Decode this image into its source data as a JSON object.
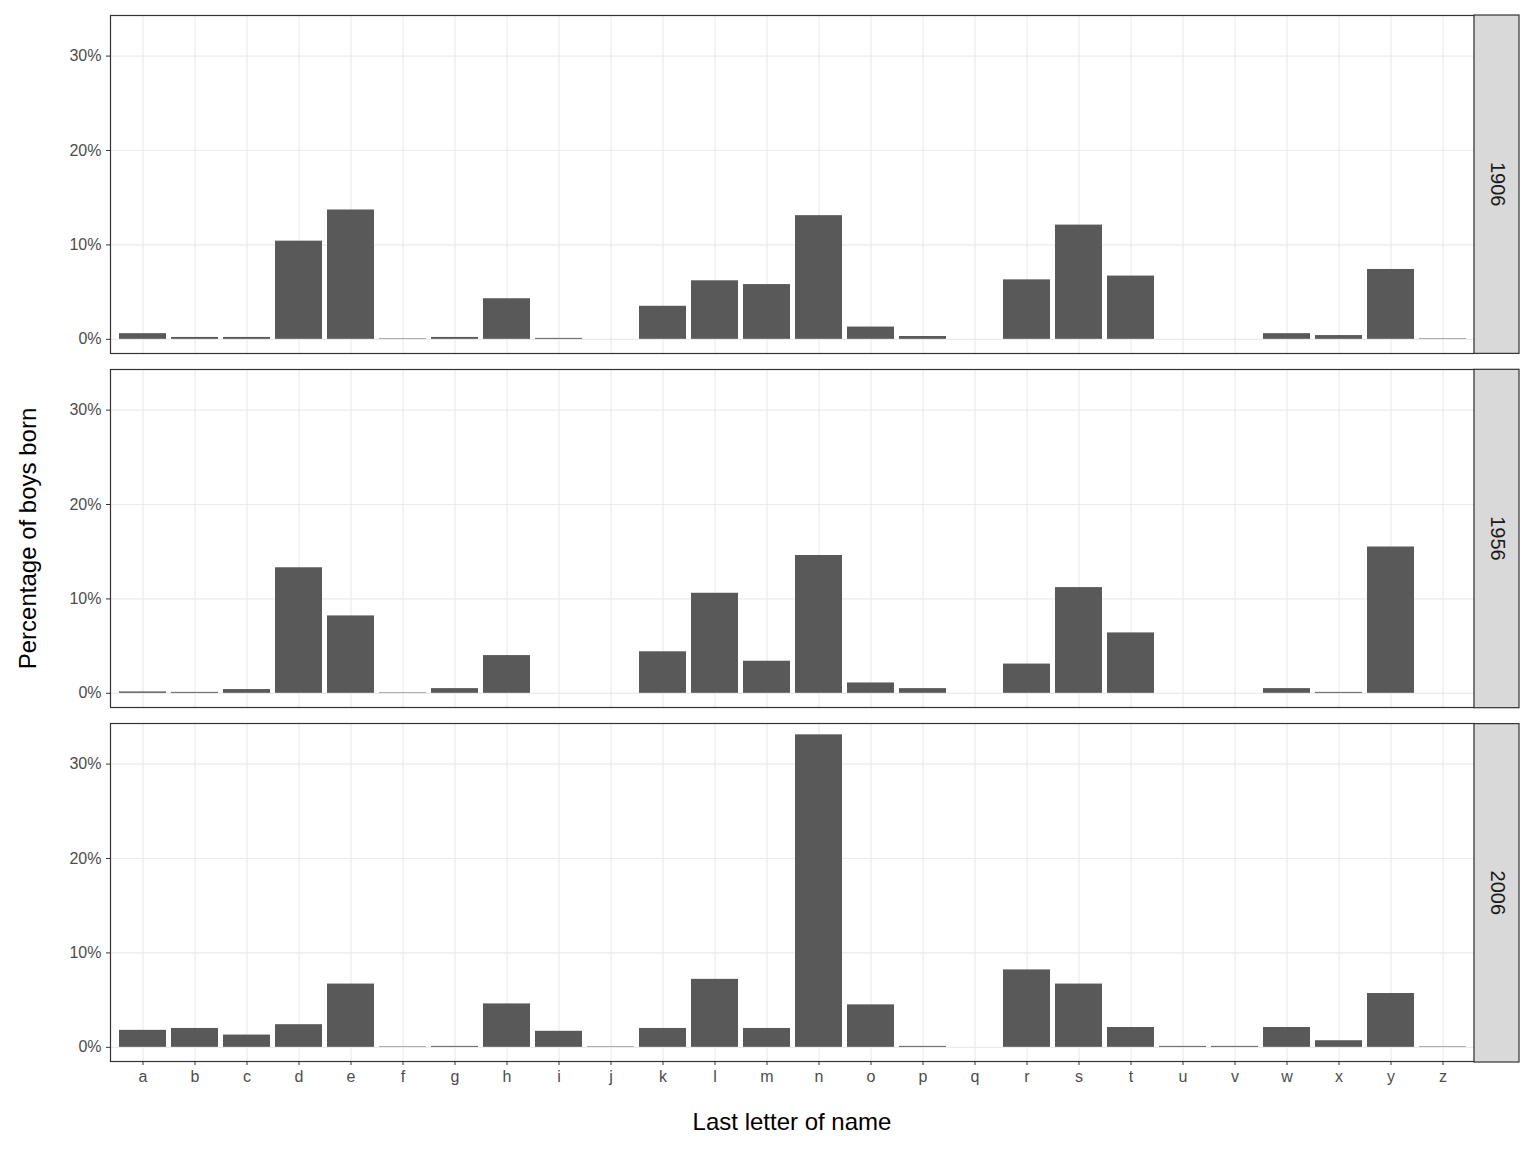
{
  "chart_data": {
    "type": "bar",
    "x_label": "Last letter of name",
    "y_label": "Percentage of boys born",
    "categories": [
      "a",
      "b",
      "c",
      "d",
      "e",
      "f",
      "g",
      "h",
      "i",
      "j",
      "k",
      "l",
      "m",
      "n",
      "o",
      "p",
      "q",
      "r",
      "s",
      "t",
      "u",
      "v",
      "w",
      "x",
      "y",
      "z"
    ],
    "series": [
      {
        "name": "1906",
        "color": "#595959",
        "values": [
          0.6,
          0.2,
          0.2,
          10.4,
          13.7,
          0.05,
          0.2,
          4.3,
          0.1,
          0,
          3.5,
          6.2,
          5.8,
          13.1,
          1.3,
          0.3,
          0,
          6.3,
          12.1,
          6.7,
          0,
          0,
          0.6,
          0.4,
          7.4,
          0.05
        ]
      },
      {
        "name": "1956",
        "color": "#595959",
        "values": [
          0.15,
          0.1,
          0.4,
          13.3,
          8.2,
          0.05,
          0.5,
          4.0,
          0,
          0,
          4.4,
          10.6,
          3.4,
          14.6,
          1.1,
          0.5,
          0,
          3.1,
          11.2,
          6.4,
          0,
          0,
          0.5,
          0.1,
          15.5,
          0
        ]
      },
      {
        "name": "2006",
        "color": "#595959",
        "values": [
          1.8,
          2.0,
          1.3,
          2.4,
          6.7,
          0.05,
          0.1,
          4.6,
          1.7,
          0.05,
          2.0,
          7.2,
          2.0,
          33.1,
          4.5,
          0.1,
          0,
          8.2,
          6.7,
          2.1,
          0.1,
          0.1,
          2.1,
          0.7,
          5.7,
          0.05
        ]
      }
    ],
    "ylim": [
      -1.5,
      34.3
    ],
    "yticks": [
      {
        "value": 0,
        "label": "0%"
      },
      {
        "value": 10,
        "label": "10%"
      },
      {
        "value": 20,
        "label": "20%"
      },
      {
        "value": 30,
        "label": "30%"
      }
    ],
    "grid": true
  }
}
